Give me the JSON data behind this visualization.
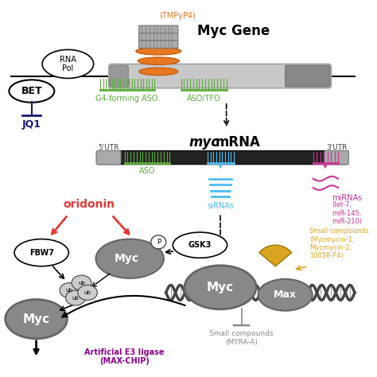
{
  "bg_color": "#ffffff",
  "myc_gene_title": "Myc Gene",
  "tmpp4_label": "(TMPyP4)",
  "bet_label": "BET",
  "jq1_label": "JQ1",
  "rna_pol_label": "RNA\nPol",
  "g4aso_label": "G4-forming ASO",
  "aso_tfo_label": "ASO/TFO",
  "five_utr": "5'UTR",
  "three_utr": "3'UTR",
  "aso_label": "ASO",
  "siRNA_label": "siRNAs",
  "miRNA_label": "miRNAs",
  "miRNA_sub": "(let-7,\nmiR-145,\nmiR-210)",
  "oridonin_label": "oridonin",
  "fbw7_label": "FBW7",
  "gsk3_label": "GSK3",
  "myc_label": "Myc",
  "max_label": "Max",
  "small_cpds_top": "Small compounds\n(Mycmycin-1,\nMycmycin-2,\n10058-F4)",
  "small_cpds_bot": "Small compounds\n(MYRA-A)",
  "e3_ligase": "Artificial E3 ligase\n(MAX-CHIP)",
  "colors": {
    "orange": "#E87722",
    "green": "#5BAD3A",
    "red": "#E53935",
    "dark_gray": "#444444",
    "gray": "#888888",
    "light_gray": "#cccccc",
    "navy": "#1a1a6e",
    "purple": "#8B008B",
    "gold": "#DAA520",
    "cyan_blue": "#4DBBEE",
    "pink": "#CC3399",
    "black": "#000000",
    "white": "#ffffff",
    "oval_gray": "#888888",
    "med_gray": "#666666",
    "ub_light": "#cccccc"
  }
}
